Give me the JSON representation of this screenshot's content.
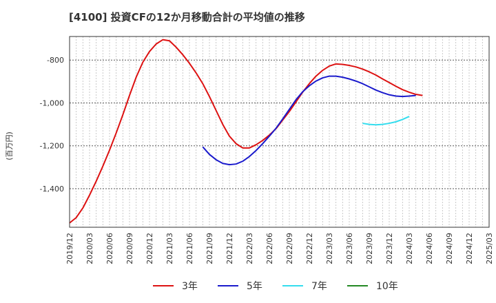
{
  "chart_data": {
    "type": "line",
    "title": "[4100]  投資CFの12か月移動合計の平均値の推移",
    "ylabel": "(百万円)",
    "xlabel": "",
    "ylim": [
      -1580,
      -690
    ],
    "yticks": [
      -800,
      -1000,
      -1200,
      -1400
    ],
    "ytick_labels": [
      "-800",
      "-1,000",
      "-1,200",
      "-1,400"
    ],
    "x_start": "2019-12",
    "x_end": "2025-03",
    "x_ticks": [
      "2019/12",
      "2020/03",
      "2020/06",
      "2020/09",
      "2020/12",
      "2021/03",
      "2021/06",
      "2021/09",
      "2021/12",
      "2022/03",
      "2022/06",
      "2022/09",
      "2022/12",
      "2023/03",
      "2023/06",
      "2023/09",
      "2023/12",
      "2024/03",
      "2024/06",
      "2024/09",
      "2024/12",
      "2025/03"
    ],
    "grid": true,
    "legend_position": "bottom",
    "series": [
      {
        "name": "3年",
        "color": "#dd1111",
        "start": "2019-12",
        "values": [
          -1560,
          -1535,
          -1490,
          -1430,
          -1365,
          -1295,
          -1220,
          -1140,
          -1055,
          -965,
          -880,
          -810,
          -760,
          -725,
          -705,
          -710,
          -740,
          -775,
          -815,
          -860,
          -910,
          -970,
          -1035,
          -1100,
          -1155,
          -1190,
          -1210,
          -1210,
          -1195,
          -1175,
          -1150,
          -1120,
          -1080,
          -1040,
          -995,
          -950,
          -910,
          -875,
          -848,
          -828,
          -818,
          -820,
          -825,
          -832,
          -842,
          -855,
          -870,
          -888,
          -905,
          -922,
          -938,
          -950,
          -960,
          -965
        ]
      },
      {
        "name": "5年",
        "color": "#1a1acc",
        "start": "2021-08",
        "values": [
          -1205,
          -1240,
          -1265,
          -1282,
          -1288,
          -1285,
          -1272,
          -1250,
          -1222,
          -1190,
          -1155,
          -1118,
          -1075,
          -1030,
          -985,
          -948,
          -920,
          -898,
          -883,
          -875,
          -875,
          -880,
          -888,
          -898,
          -910,
          -925,
          -940,
          -952,
          -962,
          -968,
          -970,
          -968,
          -965
        ]
      },
      {
        "name": "7年",
        "color": "#33ddee",
        "start": "2023-08",
        "values": [
          -1095,
          -1100,
          -1102,
          -1100,
          -1095,
          -1088,
          -1077,
          -1063
        ]
      },
      {
        "name": "10年",
        "color": "#228822",
        "start": "2024-03",
        "values": []
      }
    ]
  }
}
